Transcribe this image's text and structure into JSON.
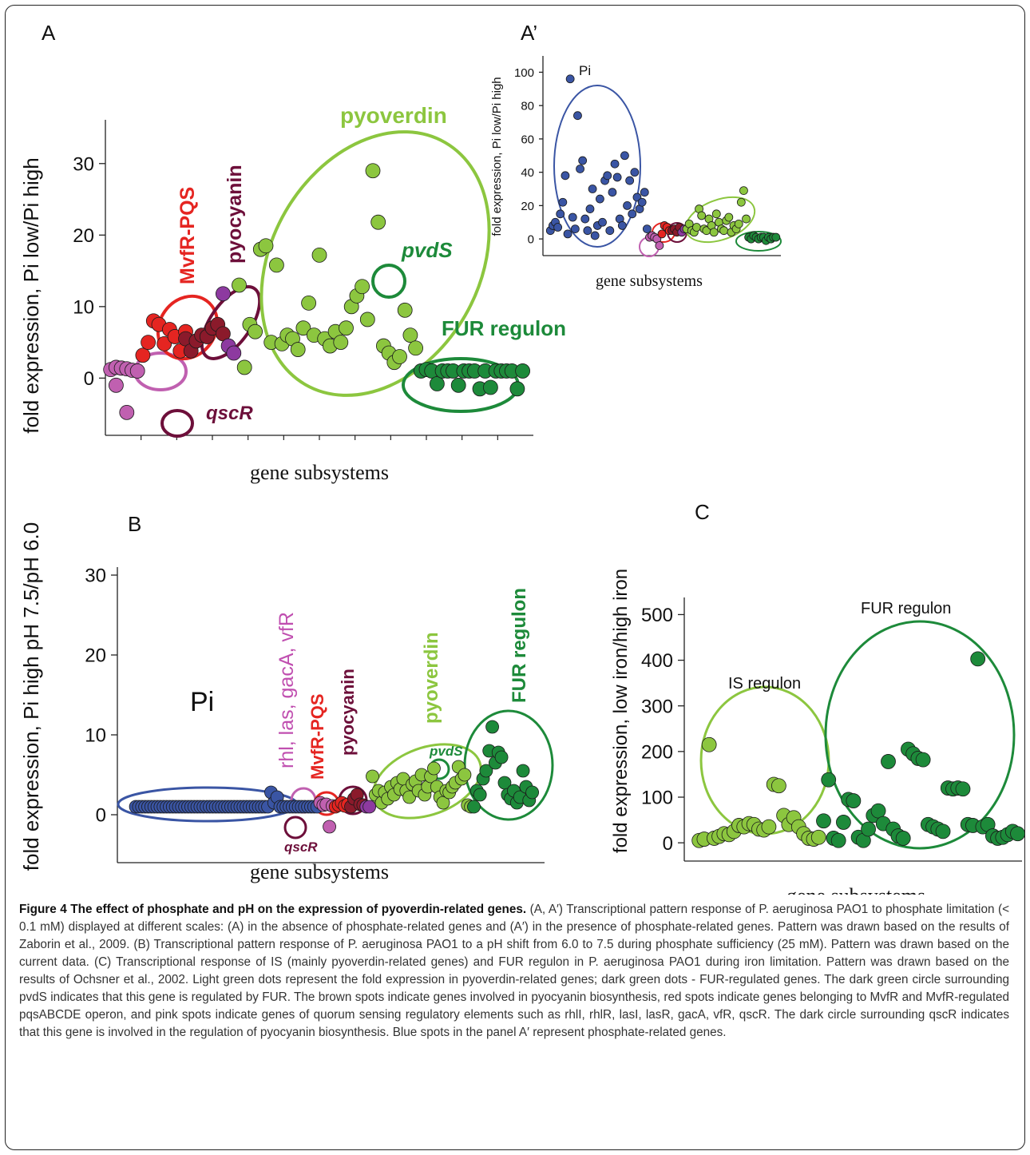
{
  "colors": {
    "pink": "#c060b0",
    "red": "#e52521",
    "brown": "#8b1a2b",
    "pyocyanin_circle": "#6d0f3a",
    "purple": "#8d3aa0",
    "light_green": "#8cc63f",
    "dark_green": "#1d8a3a",
    "blue": "#3a55a4",
    "pink_text": "#c04fb0",
    "red_text": "#e52521",
    "brown_text": "#6d0f3a",
    "light_green_text": "#8cc63f",
    "dark_green_text": "#1d8a3a",
    "blue_text": "#3a55a4"
  },
  "caption": {
    "title": "Figure 4 The effect of phosphate and pH on the expression of pyoverdin-related genes.",
    "body": "(A, A′) Transcriptional pattern response of P. aeruginosa PAO1 to phosphate limitation (< 0.1 mM) displayed at different scales: (A) in the absence of phosphate-related genes and (A′) in the presence of phosphate-related genes. Pattern was drawn based on the results of Zaborin et al., 2009. (B) Transcriptional pattern response of P. aeruginosa PAO1 to a pH shift from 6.0 to 7.5 during phosphate sufficiency (25 mM). Pattern was drawn based on the current data. (C) Transcriptional response of IS (mainly pyoverdin-related genes) and FUR regulon in P. aeruginosa PAO1 during iron limitation. Pattern was drawn based on the results of Ochsner et al., 2002. Light green dots represent the fold expression in pyoverdin-related genes; dark green dots - FUR-regulated genes. The dark green circle surrounding pvdS indicates that this gene is regulated by FUR. The brown spots indicate genes involved in pyocyanin biosynthesis, red spots indicate genes belonging to MvfR and MvfR-regulated pqsABCDE operon, and pink spots indicate genes of quorum sensing regulatory elements such as rhlI, rhlR, lasI, lasR, gacA, vfR, qscR. The dark circle surrounding qscR indicates that this gene is involved in the regulation of pyocyanin biosynthesis. Blue spots in the panel A′ represent phosphate-related genes."
  },
  "chart_data": [
    {
      "panel": "A",
      "type": "scatter",
      "ylabel": "fold expression, Pi low/Pi high",
      "xlabel": "gene subsystems",
      "ylim": [
        -8,
        35
      ],
      "yticks": [
        0,
        10,
        20,
        30
      ],
      "labels": [
        "MvfR-PQS",
        "pyocyanin",
        "pyoverdin",
        "pvdS",
        "FUR regulon",
        "qscR"
      ],
      "series": [
        {
          "color": "pink",
          "x": [
            1,
            2,
            3,
            4,
            5,
            6,
            2,
            4
          ],
          "y": [
            1.2,
            1.5,
            1.4,
            1.3,
            1.1,
            1.0,
            -1.0,
            -4.8
          ]
        },
        {
          "color": "red",
          "x": [
            7,
            8,
            9,
            10,
            11,
            12,
            13,
            14,
            15
          ],
          "y": [
            3.2,
            5.0,
            8.0,
            7.5,
            4.8,
            6.8,
            5.8,
            3.8,
            6.5
          ]
        },
        {
          "color": "brown",
          "x": [
            15,
            16,
            17,
            18,
            19,
            20,
            21,
            22
          ],
          "y": [
            5.5,
            3.8,
            5.2,
            6.0,
            5.8,
            7.0,
            7.5,
            6.2
          ]
        },
        {
          "color": "purple",
          "x": [
            22,
            23,
            24
          ],
          "y": [
            11.8,
            4.5,
            3.5
          ]
        },
        {
          "color": "light_green",
          "x": [
            25,
            26,
            27,
            28,
            29,
            30,
            31,
            32,
            33,
            34,
            35,
            36,
            37,
            38,
            39,
            40,
            41,
            42,
            43,
            44,
            45,
            46,
            47,
            48,
            49,
            50,
            51,
            52,
            53,
            54,
            55,
            56,
            57,
            58
          ],
          "y": [
            13.0,
            1.5,
            7.5,
            6.5,
            18.0,
            18.5,
            5.0,
            15.8,
            4.8,
            6.0,
            5.5,
            4.0,
            7.0,
            10.5,
            6.0,
            17.2,
            5.5,
            4.5,
            6.5,
            5.0,
            7.0,
            10.0,
            11.5,
            12.8,
            8.2,
            29.0,
            21.8,
            4.5,
            3.5,
            2.2,
            3.0,
            9.5,
            6.0,
            4.2
          ]
        },
        {
          "color": "dark_green",
          "x": [
            59,
            60,
            61,
            62,
            63,
            64,
            65,
            66,
            67,
            68,
            69,
            70,
            71,
            72,
            73,
            74,
            75,
            76,
            77,
            78
          ],
          "y": [
            1.0,
            1.2,
            1.0,
            -0.8,
            1.0,
            1.0,
            1.0,
            -1.0,
            1.0,
            1.0,
            1.0,
            -1.5,
            1.0,
            -1.3,
            1.0,
            1.0,
            1.0,
            1.0,
            -1.5,
            1.0
          ]
        }
      ]
    },
    {
      "panel": "A′",
      "type": "scatter",
      "ylabel": "fold expression, Pi low/Pi high",
      "xlabel": "gene subsystems",
      "ylim": [
        -10,
        105
      ],
      "yticks": [
        0,
        20,
        40,
        60,
        80,
        100
      ],
      "labels": [
        "Pi"
      ],
      "series": [
        {
          "color": "blue",
          "x": [
            1,
            2,
            3,
            4,
            5,
            6,
            7,
            8,
            9,
            10,
            11,
            12,
            13,
            14,
            15,
            16,
            17,
            18,
            19,
            20,
            21,
            22,
            23,
            24,
            25,
            26,
            27,
            28,
            29,
            30,
            31,
            32,
            33,
            34,
            35,
            36,
            37,
            38,
            39,
            40
          ],
          "y": [
            5,
            8,
            10,
            7,
            15,
            22,
            38,
            3,
            96,
            13,
            6,
            74,
            42,
            47,
            12,
            5,
            18,
            30,
            2,
            8,
            24,
            10,
            35,
            38,
            5,
            28,
            45,
            37,
            12,
            8,
            50,
            20,
            35,
            15,
            40,
            25,
            18,
            22,
            28,
            6
          ]
        },
        {
          "color": "pink",
          "x": [
            41,
            42,
            43,
            44,
            45
          ],
          "y": [
            1,
            2,
            1,
            0,
            -4
          ]
        },
        {
          "color": "red",
          "x": [
            46,
            47,
            48,
            49
          ],
          "y": [
            3,
            8,
            7,
            5
          ]
        },
        {
          "color": "brown",
          "x": [
            50,
            51,
            52,
            53
          ],
          "y": [
            5,
            6,
            4,
            7
          ]
        },
        {
          "color": "purple",
          "x": [
            54,
            55
          ],
          "y": [
            4,
            6
          ]
        },
        {
          "color": "light_green",
          "x": [
            56,
            57,
            58,
            59,
            60,
            61,
            62,
            63,
            64,
            65,
            66,
            67,
            68,
            69,
            70,
            71,
            72,
            73,
            74,
            75,
            76,
            77,
            78,
            79,
            80
          ],
          "y": [
            6,
            9,
            5,
            4,
            7,
            18,
            14,
            6,
            5,
            12,
            8,
            4,
            15,
            10,
            6,
            5,
            11,
            13,
            4,
            8,
            6,
            9,
            22,
            29,
            12
          ]
        },
        {
          "color": "dark_green",
          "x": [
            81,
            82,
            83,
            84,
            85,
            86,
            87,
            88,
            89,
            90,
            91,
            92
          ],
          "y": [
            1,
            0,
            2,
            1,
            0,
            1,
            1,
            -1,
            1,
            0,
            1,
            1
          ]
        }
      ]
    },
    {
      "panel": "B",
      "type": "scatter",
      "ylabel": "fold expression, Pi high pH 7.5/pH 6.0",
      "xlabel": "gene subsystems",
      "ylim": [
        -6,
        30
      ],
      "yticks": [
        0,
        10,
        20,
        30
      ],
      "labels": [
        "Pi",
        "rhl, las, gacA, vfR",
        "MvfR-PQS",
        "pyocyanin",
        "pyoverdin",
        "pvdS",
        "FUR regulon",
        "qscR"
      ],
      "series": [
        {
          "color": "blue",
          "x": [
            1,
            2,
            3,
            4,
            5,
            6,
            7,
            8,
            9,
            10,
            11,
            12,
            13,
            14,
            15,
            16,
            17,
            18,
            19,
            20,
            21,
            22,
            23,
            24,
            25,
            26,
            27,
            28,
            29,
            30,
            31,
            32,
            33,
            34,
            35,
            36,
            37,
            38,
            39,
            40,
            41,
            42,
            43,
            44,
            45,
            46,
            47,
            48,
            49,
            50,
            51,
            52,
            53,
            54,
            55,
            56,
            57,
            58,
            59,
            60
          ],
          "y": [
            1,
            1,
            1,
            1,
            1,
            1,
            1,
            1,
            1,
            1,
            1,
            1,
            1,
            1,
            1,
            1,
            1,
            1,
            1,
            1,
            1,
            1,
            1,
            1,
            1,
            1,
            1,
            1,
            1,
            1,
            1,
            1,
            1,
            1,
            1,
            1,
            1,
            1,
            1,
            1,
            1,
            1,
            1,
            1,
            2.8,
            1.5,
            2.2,
            1,
            1,
            1,
            1,
            1,
            1,
            1,
            1,
            1,
            1,
            1,
            1,
            1
          ]
        },
        {
          "color": "pink",
          "x": [
            61,
            62,
            63,
            64,
            65
          ],
          "y": [
            1.5,
            1.2,
            1.3,
            -1.5,
            1.1
          ]
        },
        {
          "color": "red",
          "x": [
            66,
            67,
            68,
            69,
            70
          ],
          "y": [
            1.0,
            1.2,
            1.5,
            1.1,
            1.3
          ]
        },
        {
          "color": "brown",
          "x": [
            71,
            72,
            73,
            74,
            75
          ],
          "y": [
            1.0,
            2.0,
            2.5,
            1.3,
            1.2
          ]
        },
        {
          "color": "purple",
          "x": [
            76,
            77
          ],
          "y": [
            1.0,
            1.0
          ]
        },
        {
          "color": "light_green",
          "x": [
            78,
            79,
            80,
            81,
            82,
            83,
            84,
            85,
            86,
            87,
            88,
            89,
            90,
            91,
            92,
            93,
            94,
            95,
            96,
            97,
            98,
            99,
            100,
            101,
            102,
            103,
            104,
            105,
            106,
            107,
            108,
            109,
            110
          ],
          "y": [
            4.8,
            2.5,
            3.0,
            1.5,
            2.8,
            2.0,
            3.5,
            2.5,
            4.0,
            3.2,
            4.5,
            3.0,
            2.2,
            3.8,
            4.2,
            3.0,
            5.0,
            2.5,
            3.5,
            4.8,
            5.8,
            3.5,
            2.2,
            1.5,
            3.0,
            2.8,
            3.5,
            4.0,
            6.0,
            4.5,
            5.0,
            1.2,
            1.0
          ]
        },
        {
          "color": "dark_green",
          "x": [
            111,
            112,
            113,
            114,
            115,
            116,
            117,
            118,
            119,
            120,
            121,
            122,
            123,
            124,
            125,
            126,
            127,
            128,
            129,
            130
          ],
          "y": [
            1.0,
            3.0,
            2.5,
            4.5,
            5.5,
            8.0,
            11.0,
            6.5,
            7.8,
            7.2,
            4.0,
            2.5,
            2.0,
            3.0,
            1.5,
            2.2,
            5.5,
            3.5,
            1.8,
            2.8
          ]
        }
      ]
    },
    {
      "panel": "C",
      "type": "scatter",
      "ylabel": "fold expression, low iron/high iron",
      "xlabel": "gene subsystems",
      "ylim": [
        -40,
        520
      ],
      "yticks": [
        0,
        100,
        200,
        300,
        400,
        500
      ],
      "labels": [
        "IS regulon",
        "FUR regulon"
      ],
      "series": [
        {
          "color": "light_green",
          "x": [
            1,
            2,
            3,
            4,
            5,
            6,
            7,
            8,
            9,
            10,
            11,
            12,
            13,
            14,
            15,
            16,
            17,
            18,
            19,
            20,
            21,
            22,
            23,
            24,
            25
          ],
          "y": [
            5,
            8,
            215,
            10,
            14,
            20,
            18,
            25,
            38,
            35,
            42,
            40,
            30,
            28,
            35,
            128,
            125,
            60,
            40,
            55,
            35,
            20,
            10,
            8,
            12
          ]
        },
        {
          "color": "dark_green",
          "x": [
            26,
            27,
            28,
            29,
            30,
            31,
            32,
            33,
            34,
            35,
            36,
            37,
            38,
            39,
            40,
            41,
            42,
            43,
            44,
            45,
            46,
            47,
            48,
            49,
            50,
            51,
            52,
            53,
            54,
            55,
            56,
            57,
            58,
            59,
            60,
            61,
            62,
            63,
            64,
            65
          ],
          "y": [
            48,
            138,
            10,
            5,
            45,
            95,
            92,
            12,
            5,
            30,
            60,
            70,
            42,
            178,
            30,
            15,
            10,
            205,
            195,
            185,
            182,
            40,
            35,
            30,
            25,
            120,
            118,
            120,
            118,
            40,
            38,
            403,
            35,
            40,
            15,
            10,
            12,
            18,
            25,
            20
          ]
        }
      ]
    }
  ]
}
